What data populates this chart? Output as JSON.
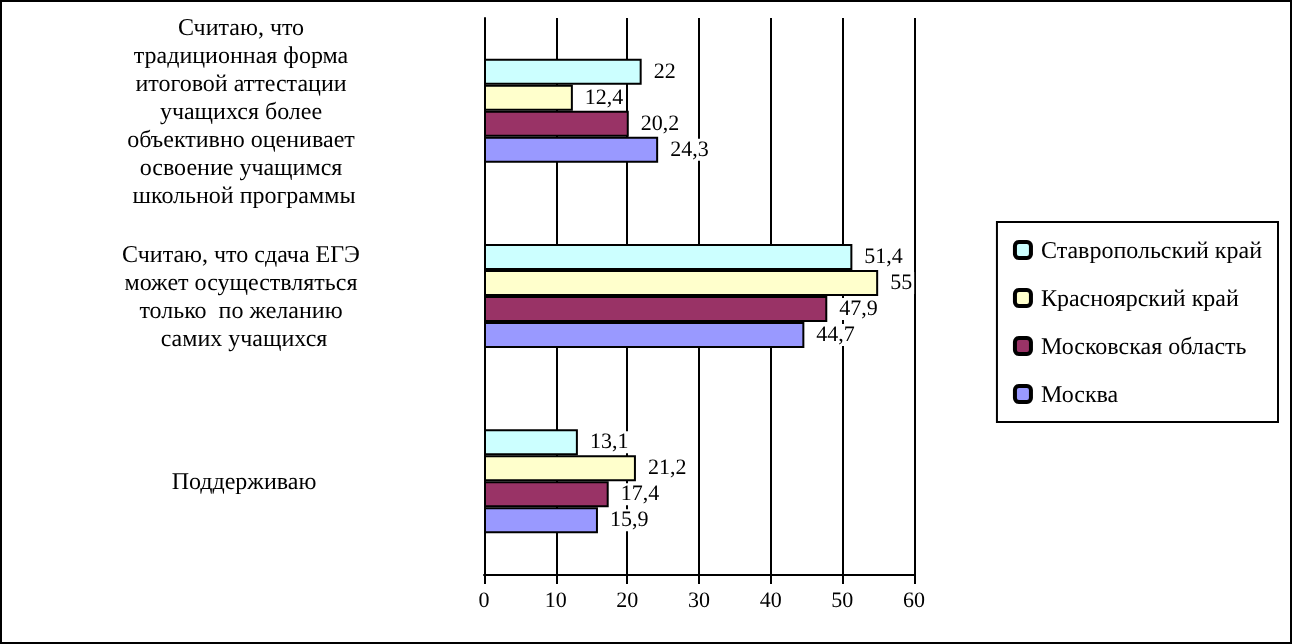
{
  "chart_data": {
    "type": "bar",
    "orientation": "horizontal",
    "categories": [
      "Считаю, что традиционная форма итоговой аттестации учащихся более объективно оценивает освоение учащимся школьной программы",
      "Считаю, что сдача ЕГЭ может осуществляться только  по желанию самих учащихся",
      "Поддерживаю"
    ],
    "series": [
      {
        "name": "Ставропольский край",
        "color": "#ccffff",
        "values": [
          22,
          51.4,
          13.1
        ],
        "value_labels": [
          "22",
          "51,4",
          "13,1"
        ]
      },
      {
        "name": "Красноярский край",
        "color": "#ffffcc",
        "values": [
          12.4,
          55,
          21.2
        ],
        "value_labels": [
          "12,4",
          "55",
          "21,2"
        ]
      },
      {
        "name": "Московская область",
        "color": "#993366",
        "values": [
          20.2,
          47.9,
          17.4
        ],
        "value_labels": [
          "20,2",
          "47,9",
          "17,4"
        ]
      },
      {
        "name": "Москва",
        "color": "#9999ff",
        "values": [
          24.3,
          44.7,
          15.9
        ],
        "value_labels": [
          "24,3",
          "44,7",
          "15,9"
        ]
      }
    ],
    "xlim": [
      0,
      60
    ],
    "xticks": [
      0,
      10,
      20,
      30,
      40,
      50,
      60
    ],
    "grid": "x",
    "legend": "right"
  }
}
